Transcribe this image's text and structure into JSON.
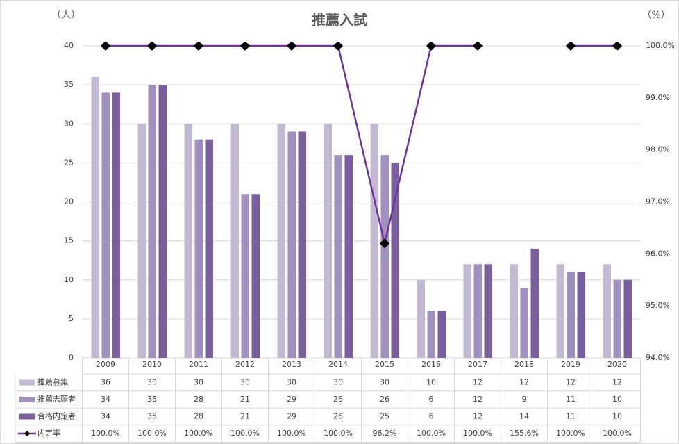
{
  "chart_data": {
    "type": "bar",
    "title": "推薦入試",
    "y_label": "（人）",
    "y2_label": "（%）",
    "categories": [
      "2009",
      "2010",
      "2011",
      "2012",
      "2013",
      "2014",
      "2015",
      "2016",
      "2017",
      "2018",
      "2019",
      "2020"
    ],
    "series": [
      {
        "name": "推薦募集",
        "color": "#c3b9d3",
        "values": [
          36,
          30,
          30,
          30,
          30,
          30,
          30,
          10,
          12,
          12,
          12,
          12
        ]
      },
      {
        "name": "推薦志願者",
        "color": "#a08fbf",
        "values": [
          34,
          35,
          28,
          21,
          29,
          26,
          26,
          6,
          12,
          9,
          11,
          10
        ]
      },
      {
        "name": "合格内定者",
        "color": "#7a5f9f",
        "values": [
          34,
          35,
          28,
          21,
          29,
          26,
          25,
          6,
          12,
          14,
          11,
          10
        ]
      },
      {
        "name": "内定率",
        "type": "line",
        "axis": "y2",
        "color": "#7030a0",
        "marker_color": "#000000",
        "values": [
          100,
          100,
          100,
          100,
          100,
          100,
          96.2,
          100,
          100,
          155.6,
          100,
          100
        ],
        "value_labels": [
          "100.0%",
          "100.0%",
          "100.0%",
          "100.0%",
          "100.0%",
          "100.0%",
          "96.2%",
          "100.0%",
          "100.0%",
          "155.6%",
          "100.0%",
          "100.0%"
        ]
      }
    ],
    "ylim": [
      0,
      40
    ],
    "yticks": [
      0,
      5,
      10,
      15,
      20,
      25,
      30,
      35,
      40
    ],
    "y2lim": [
      94,
      100
    ],
    "y2ticks": [
      {
        "value": 94,
        "label": "94.0%"
      },
      {
        "value": 95,
        "label": "95.0%"
      },
      {
        "value": 96,
        "label": "96.0%"
      },
      {
        "value": 97,
        "label": "97.0%"
      },
      {
        "value": 98,
        "label": "98.0%"
      },
      {
        "value": 99,
        "label": "99.0%"
      },
      {
        "value": 100,
        "label": "100.0%"
      }
    ],
    "grid": true,
    "data_table": true
  }
}
